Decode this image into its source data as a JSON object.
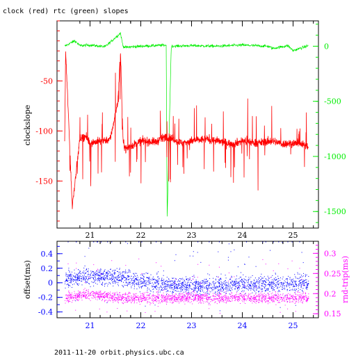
{
  "page": {
    "title": "clock (red) rtc (green) slopes",
    "footer": "2011-11-20  orbit.physics.ubc.ca"
  },
  "colors": {
    "clock": "#ff0000",
    "rtc": "#00ee00",
    "offset": "#0000ff",
    "rnd_trip": "#ff00ff",
    "axes": "#000000"
  },
  "chart_data": [
    {
      "type": "line",
      "title": "clock (red) rtc (green) slopes",
      "ylabel": "clockslope",
      "xlim": [
        20.35,
        25.5
      ],
      "ylim": [
        -197,
        10
      ],
      "x_ticks": [
        "21",
        "22",
        "23",
        "24",
        "25"
      ],
      "y_ticks": [
        "-50",
        "-100",
        "-150"
      ],
      "y2lim": [
        -1650,
        230
      ],
      "y2_ticks": [
        "0",
        "-500",
        "-1000",
        "-1500"
      ],
      "grid": false,
      "series": [
        {
          "axis": "left",
          "color": "#ff0000",
          "baseline": -110,
          "x": [
            20.5,
            20.52,
            20.6,
            20.65,
            20.8,
            20.9,
            21.0,
            21.2,
            21.4,
            21.55,
            21.6,
            21.65,
            21.7,
            22.0,
            22.3,
            22.5,
            22.8,
            23.0,
            23.3,
            23.5,
            23.8,
            24.0,
            24.3,
            24.6,
            24.8,
            25.0,
            25.3
          ],
          "values": [
            -112,
            -20,
            -115,
            -175,
            -108,
            -105,
            -112,
            -110,
            -108,
            -70,
            -20,
            -110,
            -118,
            -110,
            -111,
            -105,
            -112,
            -110,
            -108,
            -110,
            -113,
            -110,
            -112,
            -110,
            -113,
            -112,
            -115
          ]
        },
        {
          "axis": "right",
          "color": "#00ee00",
          "baseline": 0,
          "x": [
            20.5,
            20.7,
            20.8,
            21.0,
            21.3,
            21.6,
            21.65,
            21.7,
            22.0,
            22.5,
            22.52,
            22.6,
            23.0,
            23.5,
            24.0,
            24.5,
            24.6,
            24.9,
            25.0,
            25.3
          ],
          "values": [
            0,
            50,
            5,
            10,
            -5,
            120,
            0,
            -10,
            0,
            10,
            -1570,
            0,
            5,
            0,
            10,
            0,
            -20,
            5,
            -40,
            5
          ]
        }
      ]
    },
    {
      "type": "scatter",
      "ylabel": "offset(ms)",
      "xlim": [
        20.35,
        25.5
      ],
      "ylim": [
        -0.48,
        0.57
      ],
      "x_ticks": [
        "21",
        "22",
        "23",
        "24",
        "25"
      ],
      "y_ticks": [
        "0.4",
        "0.2",
        "0",
        "-0.2",
        "-0.4"
      ],
      "y2label": "rnd-trip(ms)",
      "y2lim": [
        0.14,
        0.33
      ],
      "y2_ticks": [
        "0.3",
        "0.25",
        "0.2",
        "0.15"
      ],
      "series": [
        {
          "axis": "left",
          "color": "#0000ff",
          "x": [
            20.5,
            21.0,
            21.6,
            22.0,
            23.0,
            24.0,
            25.3
          ],
          "values": [
            0.05,
            0.1,
            0.08,
            0.02,
            -0.05,
            -0.02,
            0.0
          ]
        },
        {
          "axis": "right",
          "color": "#ff00ff",
          "x": [
            20.5,
            21.0,
            21.6,
            22.0,
            23.0,
            24.0,
            25.3
          ],
          "values": [
            0.19,
            0.2,
            0.19,
            0.19,
            0.19,
            0.19,
            0.19
          ]
        }
      ]
    }
  ]
}
